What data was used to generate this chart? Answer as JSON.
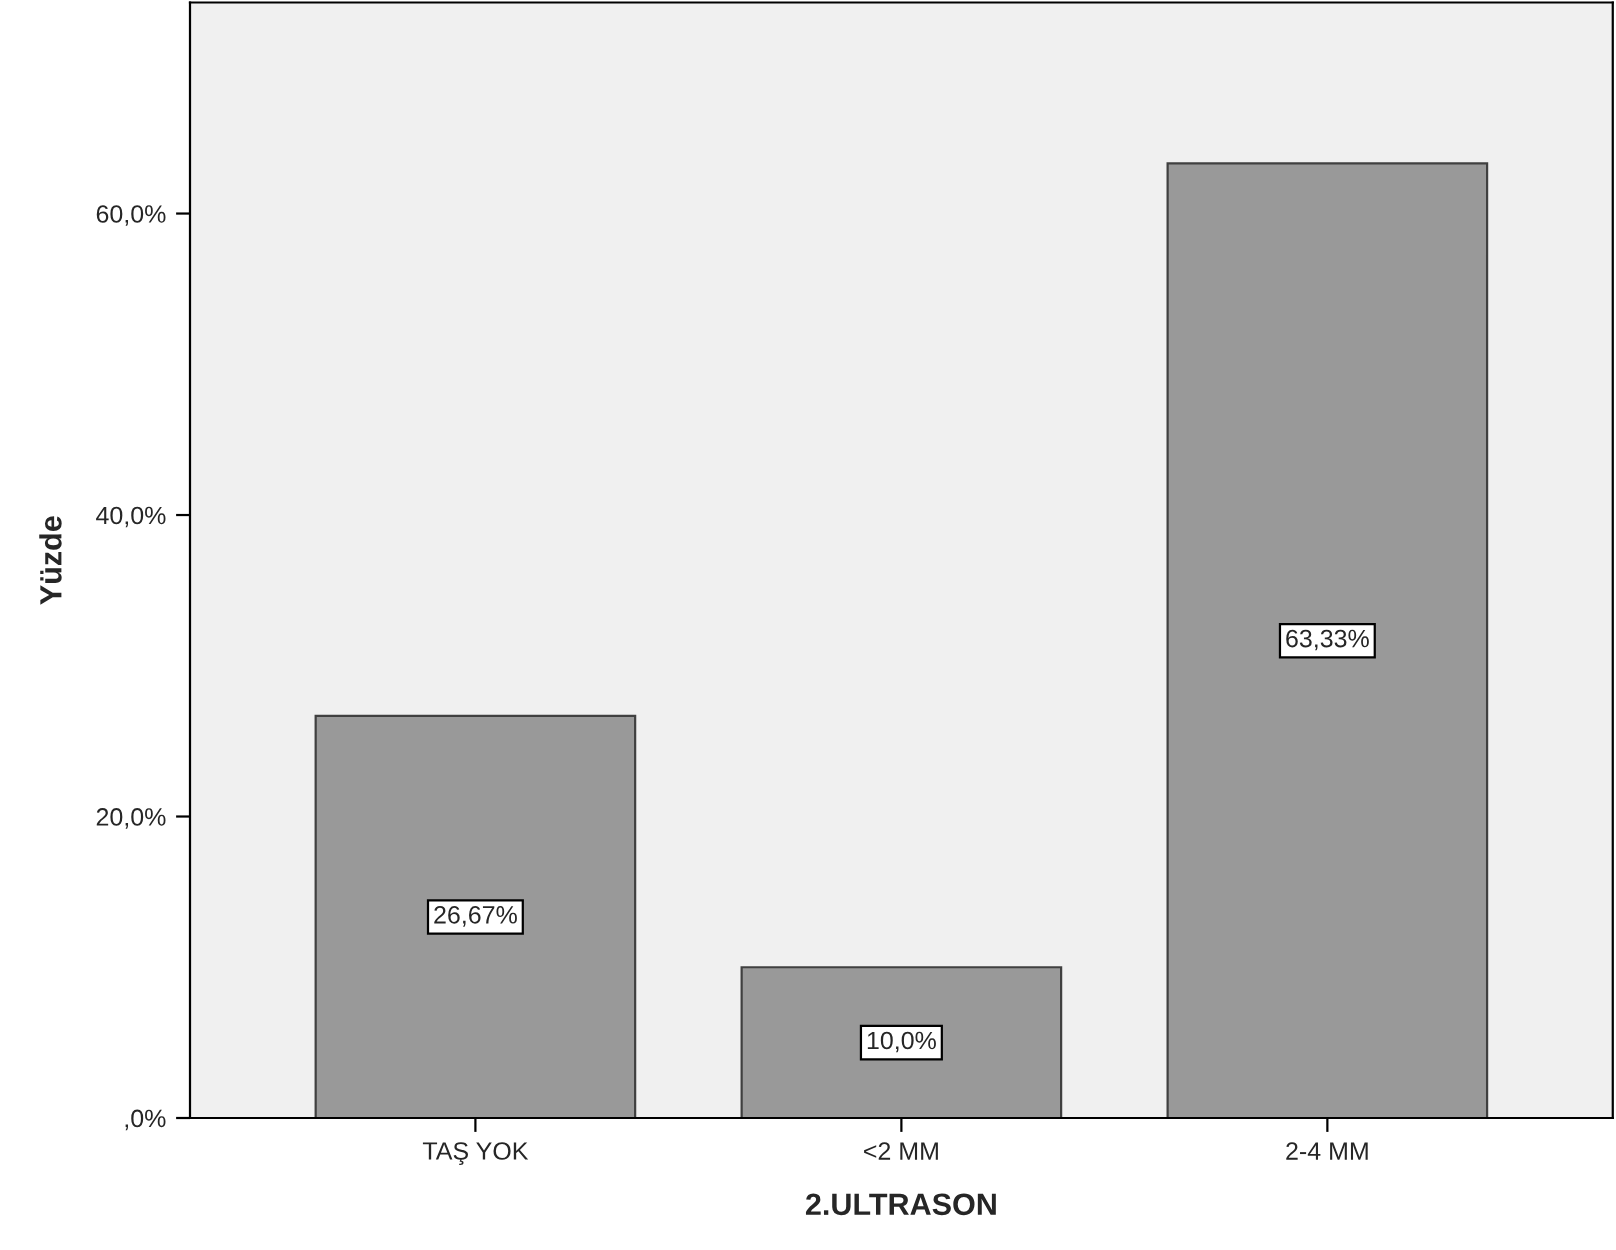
{
  "chart_data": {
    "type": "bar",
    "xlabel": "2.ULTRASON",
    "ylabel": "Yüzde",
    "categories": [
      "TAŞ YOK",
      "<2 MM",
      "2-4 MM"
    ],
    "values": [
      26.67,
      10.0,
      63.33
    ],
    "value_labels": [
      "26,67%",
      "10,0%",
      "63,33%"
    ],
    "color": "#999999",
    "ylim": [
      0,
      74
    ],
    "yticks": [
      {
        "value": 0,
        "label": ",0%"
      },
      {
        "value": 20,
        "label": "20,0%"
      },
      {
        "value": 40,
        "label": "40,0%"
      },
      {
        "value": 60,
        "label": "60,0%"
      }
    ],
    "grid": false,
    "legend": false
  }
}
